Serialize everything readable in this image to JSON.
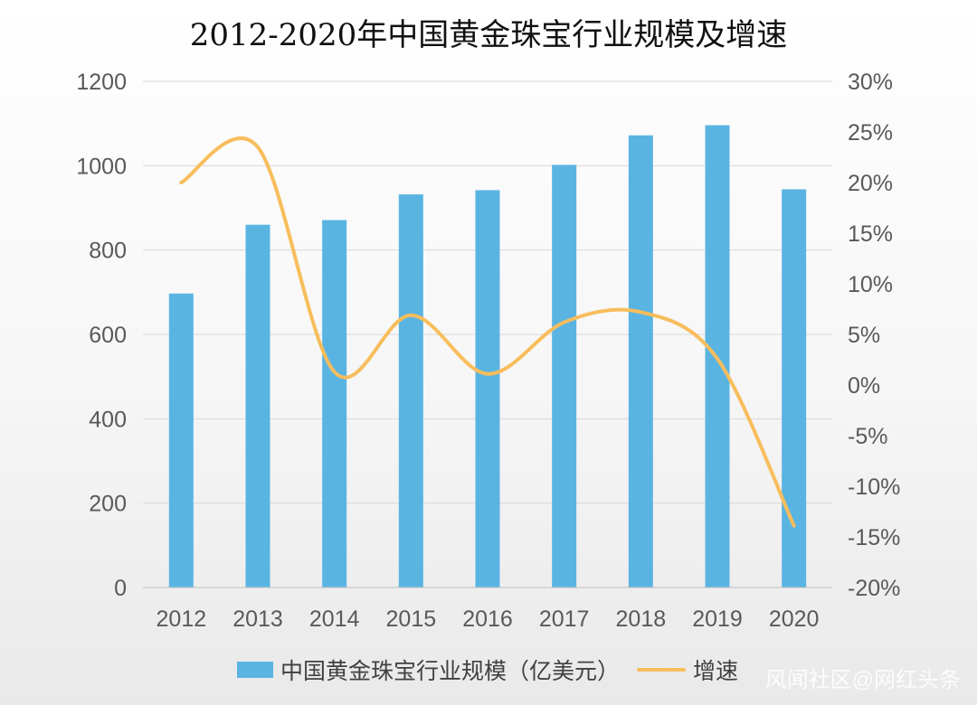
{
  "chart_data": {
    "type": "bar+line",
    "title": "2012-2020年中国黄金珠宝行业规模及增速",
    "categories": [
      "2012",
      "2013",
      "2014",
      "2015",
      "2016",
      "2017",
      "2018",
      "2019",
      "2020"
    ],
    "series": [
      {
        "name": "中国黄金珠宝行业规模（亿美元）",
        "kind": "bar",
        "axis": "left",
        "color": "#5ab4e2",
        "values": [
          697,
          860,
          871,
          932,
          942,
          1002,
          1072,
          1096,
          944
        ]
      },
      {
        "name": "增速",
        "kind": "line",
        "axis": "right",
        "color": "#f8bd5c",
        "values": [
          20.0,
          23.5,
          1.3,
          6.9,
          1.1,
          6.2,
          7.2,
          2.6,
          -13.9
        ]
      }
    ],
    "left_axis": {
      "min": 0,
      "max": 1200,
      "step": 200,
      "tick_labels": [
        "0",
        "200",
        "400",
        "600",
        "800",
        "1000",
        "1200"
      ]
    },
    "right_axis": {
      "min": -20,
      "max": 30,
      "step": 5,
      "tick_labels": [
        "-20%",
        "-15%",
        "-10%",
        "-5%",
        "0%",
        "5%",
        "10%",
        "15%",
        "20%",
        "25%",
        "30%"
      ]
    },
    "grid": true,
    "legend_position": "bottom"
  },
  "watermark": "风闻社区@网红头条",
  "colors": {
    "grid": "#d9d9d9",
    "tick_text": "#595959"
  }
}
